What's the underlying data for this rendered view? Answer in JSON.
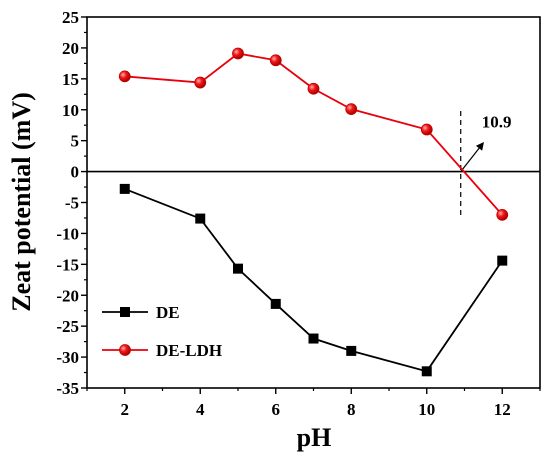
{
  "chart_data": {
    "type": "line",
    "xlabel": "pH",
    "ylabel": "Zeat potential (mV)",
    "xlim": [
      1,
      13
    ],
    "ylim": [
      -35,
      25
    ],
    "xticks": [
      2,
      4,
      6,
      8,
      10,
      12
    ],
    "yticks": [
      -35,
      -30,
      -25,
      -20,
      -15,
      -10,
      -5,
      0,
      5,
      10,
      15,
      20,
      25
    ],
    "zero_line": true,
    "legend_position": "bottom-left",
    "series": [
      {
        "name": "DE",
        "color": "#000000",
        "marker": "square",
        "x": [
          2,
          4,
          5,
          6,
          7,
          8,
          10,
          12
        ],
        "y": [
          -2.8,
          -7.6,
          -15.7,
          -21.4,
          -27.0,
          -29.0,
          -32.3,
          -14.4
        ]
      },
      {
        "name": "DE-LDH",
        "color": "#e8000b",
        "marker": "circle",
        "x": [
          2,
          4,
          5,
          6,
          7,
          8,
          10,
          12
        ],
        "y": [
          15.4,
          14.4,
          19.1,
          18.0,
          13.4,
          10.1,
          6.8,
          -7.0
        ]
      }
    ],
    "annotations": [
      {
        "text": "10.9",
        "x": 10.9,
        "y": 0,
        "marker": "dashed vertical line with arrow"
      }
    ]
  }
}
